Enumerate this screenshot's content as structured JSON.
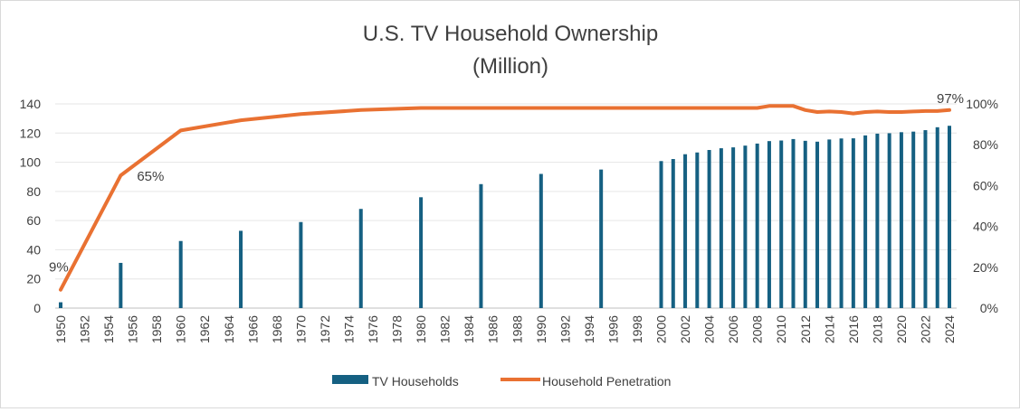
{
  "chart_data": {
    "type": "bar",
    "title": "U.S. TV Household Ownership",
    "subtitle": "(Million)",
    "xlabel": "",
    "ylabel": "",
    "x_range": [
      1950,
      2024
    ],
    "x_ticks": [
      "1950",
      "1952",
      "1954",
      "1956",
      "1958",
      "1960",
      "1962",
      "1964",
      "1966",
      "1968",
      "1970",
      "1972",
      "1974",
      "1976",
      "1978",
      "1980",
      "1982",
      "1984",
      "1986",
      "1988",
      "1990",
      "1992",
      "1994",
      "1996",
      "1998",
      "2000",
      "2002",
      "2004",
      "2006",
      "2008",
      "2010",
      "2012",
      "2014",
      "2016",
      "2018",
      "2020",
      "2022",
      "2024"
    ],
    "y_left": {
      "ylim": [
        0,
        140
      ],
      "ticks": [
        "0",
        "20",
        "40",
        "60",
        "80",
        "100",
        "120",
        "140"
      ]
    },
    "y_right": {
      "ylim": [
        0,
        100
      ],
      "ticks": [
        "0%",
        "20%",
        "40%",
        "60%",
        "80%",
        "100%"
      ]
    },
    "grid": true,
    "legend_position": "bottom",
    "series": [
      {
        "name": "TV Households",
        "type": "bar",
        "axis": "left",
        "color": "#156082",
        "x": [
          1950,
          1955,
          1960,
          1965,
          1970,
          1975,
          1980,
          1985,
          1990,
          1995,
          2000,
          2001,
          2002,
          2003,
          2004,
          2005,
          2006,
          2007,
          2008,
          2009,
          2010,
          2011,
          2012,
          2013,
          2014,
          2015,
          2016,
          2017,
          2018,
          2019,
          2020,
          2021,
          2022,
          2023,
          2024
        ],
        "values": [
          4,
          31,
          46,
          53,
          59,
          68,
          76,
          85,
          92,
          95,
          100.8,
          102.2,
          105.5,
          106.7,
          108.4,
          109.6,
          110.2,
          111.4,
          112.8,
          114.5,
          114.9,
          115.9,
          114.7,
          114.1,
          115.6,
          116.3,
          116.4,
          118.4,
          119.6,
          119.9,
          120.6,
          121,
          122,
          124,
          125
        ]
      },
      {
        "name": "Household Penetration",
        "type": "line",
        "axis": "right",
        "color": "#E97132",
        "x": [
          1950,
          1955,
          1960,
          1965,
          1970,
          1975,
          1980,
          1985,
          1990,
          1995,
          2000,
          2001,
          2002,
          2003,
          2004,
          2005,
          2006,
          2007,
          2008,
          2009,
          2010,
          2011,
          2012,
          2013,
          2014,
          2015,
          2016,
          2017,
          2018,
          2019,
          2020,
          2021,
          2022,
          2023,
          2024
        ],
        "values": [
          9,
          65,
          87,
          92,
          95,
          97,
          98,
          98,
          98,
          98,
          98,
          98,
          98,
          98,
          98,
          98,
          98,
          98,
          98,
          99,
          99,
          99,
          97,
          96,
          96.3,
          96,
          95.3,
          96,
          96.3,
          96,
          96,
          96.3,
          96.5,
          96.5,
          97
        ]
      }
    ],
    "annotations": [
      {
        "text": "9%",
        "x": 1950,
        "value": 9
      },
      {
        "text": "65%",
        "x": 1955,
        "value": 65
      },
      {
        "text": "97%",
        "x": 2024,
        "value": 97
      }
    ]
  }
}
